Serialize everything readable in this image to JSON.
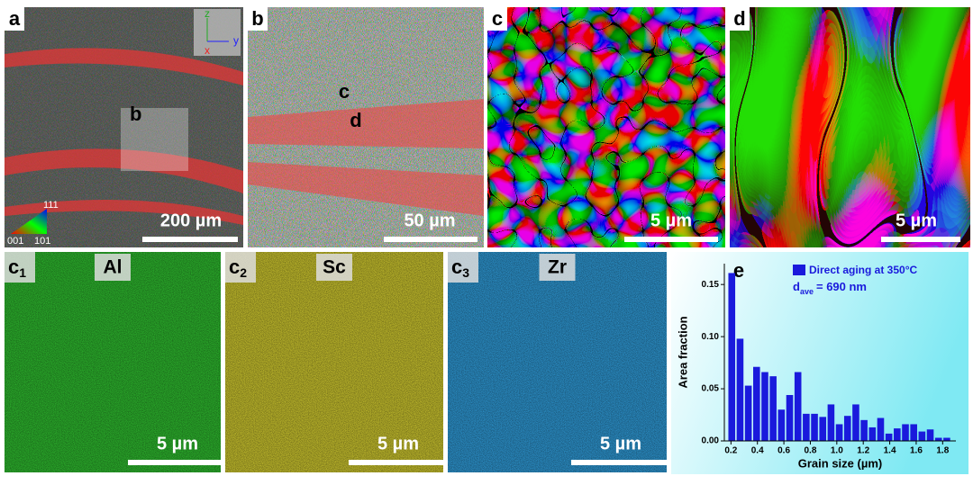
{
  "panels": [
    {
      "label": "a",
      "scale_bar": "200 µm",
      "marker": "b",
      "triad": [
        "z",
        "y",
        "x"
      ],
      "key": [
        "111",
        "001",
        "101"
      ]
    },
    {
      "label": "b",
      "scale_bar": "50 µm",
      "markers": [
        "c",
        "d"
      ]
    },
    {
      "label": "c",
      "scale_bar": "5 µm"
    },
    {
      "label": "d",
      "scale_bar": "5 µm"
    }
  ],
  "maps": [
    {
      "letter": "c",
      "sub": "1",
      "element": "Al",
      "scale_bar": "5 µm"
    },
    {
      "letter": "c",
      "sub": "2",
      "element": "Sc",
      "scale_bar": "5 µm"
    },
    {
      "letter": "c",
      "sub": "3",
      "element": "Zr",
      "scale_bar": "5 µm"
    }
  ],
  "chart_data": {
    "type": "histogram",
    "label": "e",
    "x_label": "Grain size (µm)",
    "y_label": "Area fraction",
    "annotation": {
      "symbol": "d",
      "subscript": "ave",
      "text": "= 690 nm"
    },
    "series": [
      {
        "name": "Direct aging at 350°C",
        "color": "#1a1adc",
        "bins": [
          0.175,
          0.2375,
          0.3,
          0.3625,
          0.425,
          0.4875,
          0.55,
          0.6125,
          0.675,
          0.7375,
          0.8,
          0.8625,
          0.925,
          0.9875,
          1.05,
          1.1125,
          1.175,
          1.2375,
          1.3,
          1.3625,
          1.425,
          1.4875,
          1.55,
          1.6125,
          1.675,
          1.7375,
          1.8,
          1.8625
        ],
        "values": [
          0.161,
          0.098,
          0.053,
          0.071,
          0.066,
          0.062,
          0.03,
          0.044,
          0.066,
          0.026,
          0.026,
          0.023,
          0.035,
          0.016,
          0.024,
          0.035,
          0.02,
          0.013,
          0.022,
          0.007,
          0.012,
          0.016,
          0.016,
          0.009,
          0.011,
          0.003,
          0.003
        ]
      }
    ],
    "xlim": [
      0.15,
      1.9
    ],
    "ylim": [
      0,
      0.17
    ],
    "xticks": [
      0.2,
      0.4,
      0.6,
      0.8,
      {
        "value": 1.0,
        "label": "1.0"
      },
      1.2,
      1.4,
      1.6,
      1.8
    ],
    "yticks": [
      {
        "value": 0,
        "label": "0.00"
      },
      {
        "value": 0.05,
        "label": "0.05"
      },
      {
        "value": 0.1,
        "label": "0.10"
      },
      {
        "value": 0.15,
        "label": "0.15"
      }
    ],
    "legend": "upper-right"
  }
}
